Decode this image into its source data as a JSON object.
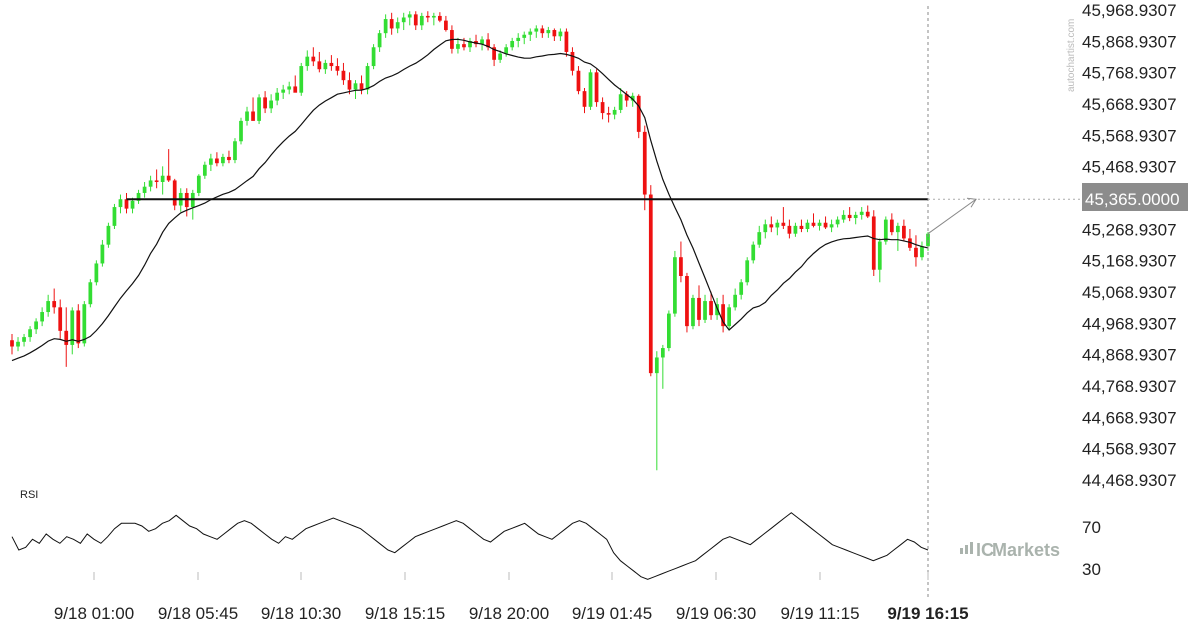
{
  "chart_data": {
    "type": "candlestick",
    "y_ticks": [
      "45,968.9307",
      "45,868.9307",
      "45,768.9307",
      "45,668.9307",
      "45,568.9307",
      "45,468.9307",
      "45,365.0000",
      "45,268.9307",
      "45,168.9307",
      "45,068.9307",
      "44,968.9307",
      "44,868.9307",
      "44,768.9307",
      "44,668.9307",
      "44,568.9307",
      "44,468.9307"
    ],
    "x_ticks": [
      "9/18 01:00",
      "9/18 05:45",
      "9/18 10:30",
      "9/18 15:15",
      "9/18 20:00",
      "9/19 01:45",
      "9/19 06:30",
      "9/19 11:15",
      "9/19 16:15"
    ],
    "ylim": [
      44468.93,
      45968.93
    ],
    "level_line": 45365.0,
    "level_label": "45,365.0000",
    "rsi": {
      "label": "RSI",
      "ticks": [
        "70",
        "30"
      ],
      "ylim": [
        20,
        80
      ],
      "values": [
        60,
        50,
        52,
        58,
        55,
        62,
        58,
        55,
        60,
        58,
        55,
        62,
        58,
        55,
        60,
        66,
        70,
        70,
        70,
        68,
        64,
        66,
        70,
        72,
        76,
        72,
        68,
        66,
        62,
        60,
        58,
        62,
        66,
        70,
        72,
        70,
        66,
        62,
        58,
        55,
        60,
        58,
        62,
        66,
        68,
        70,
        72,
        74,
        72,
        70,
        68,
        66,
        62,
        58,
        54,
        50,
        48,
        52,
        56,
        60,
        62,
        64,
        66,
        68,
        70,
        72,
        70,
        66,
        62,
        58,
        56,
        60,
        64,
        66,
        68,
        70,
        66,
        62,
        60,
        58,
        62,
        66,
        70,
        72,
        70,
        66,
        62,
        58,
        48,
        42,
        38,
        34,
        30,
        28,
        30,
        32,
        34,
        36,
        38,
        40,
        42,
        46,
        50,
        54,
        58,
        60,
        58,
        56,
        54,
        58,
        62,
        66,
        70,
        74,
        78,
        74,
        70,
        66,
        62,
        58,
        54,
        52,
        50,
        48,
        46,
        44,
        42,
        44,
        46,
        50,
        54,
        58,
        56,
        52,
        50
      ]
    },
    "candles": [
      {
        "o": 44915,
        "h": 44935,
        "l": 44870,
        "c": 44895
      },
      {
        "o": 44895,
        "h": 44925,
        "l": 44880,
        "c": 44910
      },
      {
        "o": 44910,
        "h": 44935,
        "l": 44895,
        "c": 44925
      },
      {
        "o": 44925,
        "h": 44960,
        "l": 44910,
        "c": 44950
      },
      {
        "o": 44950,
        "h": 44985,
        "l": 44935,
        "c": 44975
      },
      {
        "o": 44975,
        "h": 45020,
        "l": 44960,
        "c": 45005
      },
      {
        "o": 45005,
        "h": 45060,
        "l": 44990,
        "c": 45040
      },
      {
        "o": 45040,
        "h": 45080,
        "l": 45000,
        "c": 45020
      },
      {
        "o": 45020,
        "h": 45045,
        "l": 44920,
        "c": 44945
      },
      {
        "o": 44945,
        "h": 45020,
        "l": 44830,
        "c": 44900
      },
      {
        "o": 44900,
        "h": 45020,
        "l": 44870,
        "c": 45010
      },
      {
        "o": 45010,
        "h": 45030,
        "l": 44890,
        "c": 44905
      },
      {
        "o": 44905,
        "h": 45040,
        "l": 44895,
        "c": 45030
      },
      {
        "o": 45030,
        "h": 45110,
        "l": 45020,
        "c": 45100
      },
      {
        "o": 45100,
        "h": 45170,
        "l": 45090,
        "c": 45160
      },
      {
        "o": 45160,
        "h": 45235,
        "l": 45150,
        "c": 45220
      },
      {
        "o": 45220,
        "h": 45290,
        "l": 45210,
        "c": 45280
      },
      {
        "o": 45280,
        "h": 45350,
        "l": 45270,
        "c": 45340
      },
      {
        "o": 45340,
        "h": 45380,
        "l": 45320,
        "c": 45365
      },
      {
        "o": 45365,
        "h": 45385,
        "l": 45320,
        "c": 45335
      },
      {
        "o": 45335,
        "h": 45370,
        "l": 45320,
        "c": 45360
      },
      {
        "o": 45360,
        "h": 45395,
        "l": 45350,
        "c": 45385
      },
      {
        "o": 45385,
        "h": 45420,
        "l": 45370,
        "c": 45405
      },
      {
        "o": 45405,
        "h": 45440,
        "l": 45390,
        "c": 45425
      },
      {
        "o": 45425,
        "h": 45460,
        "l": 45400,
        "c": 45420
      },
      {
        "o": 45420,
        "h": 45470,
        "l": 45380,
        "c": 45440
      },
      {
        "o": 45440,
        "h": 45525,
        "l": 45420,
        "c": 45425
      },
      {
        "o": 45425,
        "h": 45430,
        "l": 45330,
        "c": 45345
      },
      {
        "o": 45345,
        "h": 45400,
        "l": 45325,
        "c": 45385
      },
      {
        "o": 45385,
        "h": 45400,
        "l": 45310,
        "c": 45340
      },
      {
        "o": 45340,
        "h": 45395,
        "l": 45300,
        "c": 45385
      },
      {
        "o": 45385,
        "h": 45445,
        "l": 45375,
        "c": 45440
      },
      {
        "o": 45440,
        "h": 45485,
        "l": 45430,
        "c": 45475
      },
      {
        "o": 45475,
        "h": 45510,
        "l": 45455,
        "c": 45495
      },
      {
        "o": 45495,
        "h": 45515,
        "l": 45470,
        "c": 45480
      },
      {
        "o": 45480,
        "h": 45510,
        "l": 45470,
        "c": 45500
      },
      {
        "o": 45500,
        "h": 45520,
        "l": 45480,
        "c": 45490
      },
      {
        "o": 45490,
        "h": 45560,
        "l": 45480,
        "c": 45550
      },
      {
        "o": 45550,
        "h": 45625,
        "l": 45540,
        "c": 45615
      },
      {
        "o": 45615,
        "h": 45660,
        "l": 45600,
        "c": 45645
      },
      {
        "o": 45645,
        "h": 45690,
        "l": 45630,
        "c": 45615
      },
      {
        "o": 45615,
        "h": 45700,
        "l": 45605,
        "c": 45690
      },
      {
        "o": 45690,
        "h": 45710,
        "l": 45640,
        "c": 45655
      },
      {
        "o": 45655,
        "h": 45700,
        "l": 45640,
        "c": 45680
      },
      {
        "o": 45680,
        "h": 45720,
        "l": 45665,
        "c": 45705
      },
      {
        "o": 45705,
        "h": 45730,
        "l": 45685,
        "c": 45715
      },
      {
        "o": 45715,
        "h": 45740,
        "l": 45700,
        "c": 45725
      },
      {
        "o": 45725,
        "h": 45760,
        "l": 45710,
        "c": 45705
      },
      {
        "o": 45705,
        "h": 45800,
        "l": 45695,
        "c": 45790
      },
      {
        "o": 45790,
        "h": 45840,
        "l": 45775,
        "c": 45820
      },
      {
        "o": 45820,
        "h": 45850,
        "l": 45790,
        "c": 45805
      },
      {
        "o": 45805,
        "h": 45835,
        "l": 45770,
        "c": 45780
      },
      {
        "o": 45780,
        "h": 45810,
        "l": 45765,
        "c": 45800
      },
      {
        "o": 45800,
        "h": 45825,
        "l": 45775,
        "c": 45790
      },
      {
        "o": 45790,
        "h": 45815,
        "l": 45760,
        "c": 45775
      },
      {
        "o": 45775,
        "h": 45800,
        "l": 45730,
        "c": 45745
      },
      {
        "o": 45745,
        "h": 45770,
        "l": 45700,
        "c": 45715
      },
      {
        "o": 45715,
        "h": 45745,
        "l": 45685,
        "c": 45735
      },
      {
        "o": 45735,
        "h": 45760,
        "l": 45700,
        "c": 45715
      },
      {
        "o": 45715,
        "h": 45800,
        "l": 45700,
        "c": 45790
      },
      {
        "o": 45790,
        "h": 45860,
        "l": 45780,
        "c": 45850
      },
      {
        "o": 45850,
        "h": 45905,
        "l": 45835,
        "c": 45895
      },
      {
        "o": 45895,
        "h": 45955,
        "l": 45880,
        "c": 45940
      },
      {
        "o": 45940,
        "h": 45960,
        "l": 45890,
        "c": 45910
      },
      {
        "o": 45910,
        "h": 45945,
        "l": 45895,
        "c": 45930
      },
      {
        "o": 45930,
        "h": 45960,
        "l": 45905,
        "c": 45945
      },
      {
        "o": 45945,
        "h": 45965,
        "l": 45920,
        "c": 45955
      },
      {
        "o": 45955,
        "h": 45965,
        "l": 45905,
        "c": 45920
      },
      {
        "o": 45920,
        "h": 45960,
        "l": 45905,
        "c": 45950
      },
      {
        "o": 45950,
        "h": 45965,
        "l": 45930,
        "c": 45945
      },
      {
        "o": 45945,
        "h": 45960,
        "l": 45920,
        "c": 45950
      },
      {
        "o": 45950,
        "h": 45962,
        "l": 45930,
        "c": 45935
      },
      {
        "o": 45935,
        "h": 45950,
        "l": 45900,
        "c": 45905
      },
      {
        "o": 45905,
        "h": 45920,
        "l": 45830,
        "c": 45845
      },
      {
        "o": 45845,
        "h": 45880,
        "l": 45830,
        "c": 45860
      },
      {
        "o": 45860,
        "h": 45880,
        "l": 45840,
        "c": 45850
      },
      {
        "o": 45850,
        "h": 45880,
        "l": 45835,
        "c": 45870
      },
      {
        "o": 45870,
        "h": 45890,
        "l": 45850,
        "c": 45860
      },
      {
        "o": 45860,
        "h": 45885,
        "l": 45840,
        "c": 45875
      },
      {
        "o": 45875,
        "h": 45895,
        "l": 45840,
        "c": 45850
      },
      {
        "o": 45850,
        "h": 45860,
        "l": 45790,
        "c": 45810
      },
      {
        "o": 45810,
        "h": 45840,
        "l": 45800,
        "c": 45830
      },
      {
        "o": 45830,
        "h": 45860,
        "l": 45820,
        "c": 45850
      },
      {
        "o": 45850,
        "h": 45880,
        "l": 45840,
        "c": 45870
      },
      {
        "o": 45870,
        "h": 45895,
        "l": 45850,
        "c": 45880
      },
      {
        "o": 45880,
        "h": 45900,
        "l": 45860,
        "c": 45890
      },
      {
        "o": 45890,
        "h": 45910,
        "l": 45870,
        "c": 45900
      },
      {
        "o": 45900,
        "h": 45920,
        "l": 45880,
        "c": 45910
      },
      {
        "o": 45910,
        "h": 45920,
        "l": 45880,
        "c": 45895
      },
      {
        "o": 45895,
        "h": 45915,
        "l": 45880,
        "c": 45905
      },
      {
        "o": 45905,
        "h": 45910,
        "l": 45870,
        "c": 45885
      },
      {
        "o": 45885,
        "h": 45910,
        "l": 45870,
        "c": 45900
      },
      {
        "o": 45900,
        "h": 45910,
        "l": 45820,
        "c": 45835
      },
      {
        "o": 45835,
        "h": 45850,
        "l": 45760,
        "c": 45775
      },
      {
        "o": 45775,
        "h": 45790,
        "l": 45700,
        "c": 45710
      },
      {
        "o": 45710,
        "h": 45720,
        "l": 45640,
        "c": 45660
      },
      {
        "o": 45660,
        "h": 45780,
        "l": 45650,
        "c": 45770
      },
      {
        "o": 45770,
        "h": 45780,
        "l": 45660,
        "c": 45675
      },
      {
        "o": 45675,
        "h": 45690,
        "l": 45620,
        "c": 45640
      },
      {
        "o": 45640,
        "h": 45660,
        "l": 45610,
        "c": 45635
      },
      {
        "o": 45635,
        "h": 45660,
        "l": 45620,
        "c": 45650
      },
      {
        "o": 45650,
        "h": 45720,
        "l": 45640,
        "c": 45700
      },
      {
        "o": 45700,
        "h": 45710,
        "l": 45660,
        "c": 45680
      },
      {
        "o": 45680,
        "h": 45705,
        "l": 45660,
        "c": 45695
      },
      {
        "o": 45695,
        "h": 45700,
        "l": 45560,
        "c": 45580
      },
      {
        "o": 45580,
        "h": 45600,
        "l": 45330,
        "c": 45380
      },
      {
        "o": 45380,
        "h": 45410,
        "l": 44800,
        "c": 44810
      },
      {
        "o": 44810,
        "h": 44880,
        "l": 44500,
        "c": 44860
      },
      {
        "o": 44860,
        "h": 44900,
        "l": 44760,
        "c": 44890
      },
      {
        "o": 44890,
        "h": 45010,
        "l": 44880,
        "c": 45000
      },
      {
        "o": 45000,
        "h": 45200,
        "l": 44990,
        "c": 45180
      },
      {
        "o": 45180,
        "h": 45230,
        "l": 45100,
        "c": 45120
      },
      {
        "o": 45120,
        "h": 45130,
        "l": 44940,
        "c": 44960
      },
      {
        "o": 44960,
        "h": 45060,
        "l": 44950,
        "c": 45050
      },
      {
        "o": 45050,
        "h": 45090,
        "l": 44960,
        "c": 44980
      },
      {
        "o": 44980,
        "h": 45060,
        "l": 44970,
        "c": 45040
      },
      {
        "o": 45040,
        "h": 45070,
        "l": 44980,
        "c": 44995
      },
      {
        "o": 44995,
        "h": 45050,
        "l": 44980,
        "c": 45030
      },
      {
        "o": 45030,
        "h": 45060,
        "l": 44940,
        "c": 44960
      },
      {
        "o": 44960,
        "h": 45030,
        "l": 44950,
        "c": 45020
      },
      {
        "o": 45020,
        "h": 45080,
        "l": 45010,
        "c": 45060
      },
      {
        "o": 45060,
        "h": 45110,
        "l": 45045,
        "c": 45100
      },
      {
        "o": 45100,
        "h": 45180,
        "l": 45090,
        "c": 45170
      },
      {
        "o": 45170,
        "h": 45230,
        "l": 45160,
        "c": 45220
      },
      {
        "o": 45220,
        "h": 45280,
        "l": 45210,
        "c": 45260
      },
      {
        "o": 45260,
        "h": 45300,
        "l": 45240,
        "c": 45285
      },
      {
        "o": 45285,
        "h": 45310,
        "l": 45260,
        "c": 45275
      },
      {
        "o": 45275,
        "h": 45300,
        "l": 45250,
        "c": 45290
      },
      {
        "o": 45290,
        "h": 45340,
        "l": 45270,
        "c": 45280
      },
      {
        "o": 45280,
        "h": 45300,
        "l": 45240,
        "c": 45255
      },
      {
        "o": 45255,
        "h": 45290,
        "l": 45245,
        "c": 45280
      },
      {
        "o": 45280,
        "h": 45300,
        "l": 45260,
        "c": 45270
      },
      {
        "o": 45270,
        "h": 45300,
        "l": 45260,
        "c": 45290
      },
      {
        "o": 45290,
        "h": 45320,
        "l": 45275,
        "c": 45280
      },
      {
        "o": 45280,
        "h": 45300,
        "l": 45265,
        "c": 45290
      },
      {
        "o": 45290,
        "h": 45310,
        "l": 45270,
        "c": 45275
      },
      {
        "o": 45275,
        "h": 45300,
        "l": 45260,
        "c": 45285
      },
      {
        "o": 45285,
        "h": 45310,
        "l": 45275,
        "c": 45300
      },
      {
        "o": 45300,
        "h": 45330,
        "l": 45290,
        "c": 45315
      },
      {
        "o": 45315,
        "h": 45340,
        "l": 45295,
        "c": 45305
      },
      {
        "o": 45305,
        "h": 45325,
        "l": 45285,
        "c": 45315
      },
      {
        "o": 45315,
        "h": 45340,
        "l": 45300,
        "c": 45325
      },
      {
        "o": 45325,
        "h": 45345,
        "l": 45305,
        "c": 45310
      },
      {
        "o": 45310,
        "h": 45330,
        "l": 45120,
        "c": 45140
      },
      {
        "o": 45140,
        "h": 45240,
        "l": 45100,
        "c": 45230
      },
      {
        "o": 45230,
        "h": 45310,
        "l": 45220,
        "c": 45300
      },
      {
        "o": 45300,
        "h": 45320,
        "l": 45250,
        "c": 45260
      },
      {
        "o": 45260,
        "h": 45290,
        "l": 45200,
        "c": 45280
      },
      {
        "o": 45280,
        "h": 45300,
        "l": 45230,
        "c": 45240
      },
      {
        "o": 45240,
        "h": 45270,
        "l": 45200,
        "c": 45210
      },
      {
        "o": 45210,
        "h": 45250,
        "l": 45150,
        "c": 45180
      },
      {
        "o": 45180,
        "h": 45230,
        "l": 45170,
        "c": 45215
      },
      {
        "o": 45215,
        "h": 45260,
        "l": 45200,
        "c": 45255
      }
    ]
  },
  "watermark": "autochartist.com",
  "logo": "Markets",
  "logo_prefix": "IC",
  "colors": {
    "up": "#33dd33",
    "down": "#ee1111",
    "ma": "#111111",
    "level": "#111111",
    "tag_bg": "#8c8c8c",
    "arrow": "#888888",
    "cursor": "#888888"
  }
}
